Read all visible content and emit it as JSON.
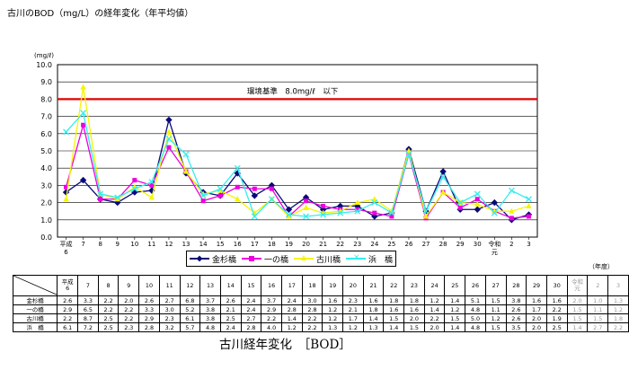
{
  "title": "古川のBOD（mg/L）の経年変化（年平均値）",
  "caption": "古川経年変化　［BOD］",
  "chart_data": {
    "type": "line",
    "ylabel": "(mg/ℓ)",
    "xlabel": "（年度）",
    "ylim": [
      0,
      10
    ],
    "yticks": [
      "0.0",
      "1.0",
      "2.0",
      "3.0",
      "4.0",
      "5.0",
      "6.0",
      "7.0",
      "8.0",
      "9.0",
      "10.0"
    ],
    "categories": [
      "平成6",
      "7",
      "8",
      "9",
      "10",
      "11",
      "12",
      "13",
      "14",
      "15",
      "16",
      "17",
      "18",
      "19",
      "20",
      "21",
      "22",
      "23",
      "24",
      "25",
      "26",
      "27",
      "28",
      "29",
      "30",
      "令和元",
      "2",
      "3"
    ],
    "table_headers": [
      "平成6",
      "7",
      "8",
      "9",
      "10",
      "11",
      "12",
      "13",
      "14",
      "15",
      "16",
      "17",
      "18",
      "19",
      "20",
      "21",
      "22",
      "23",
      "24",
      "25",
      "26",
      "27",
      "28",
      "29",
      "30",
      "令和元",
      "2",
      "3"
    ],
    "grid": true,
    "legend_position": "bottom",
    "reference_line": {
      "value": 8.0,
      "label": "環境基準　8.0mg/ℓ　以下",
      "color": "#e00000"
    },
    "series": [
      {
        "name": "金杉橋",
        "color": "#0a0a7a",
        "marker": "diamond",
        "values": [
          2.6,
          3.3,
          2.2,
          2.0,
          2.6,
          2.7,
          6.8,
          3.7,
          2.6,
          2.4,
          3.7,
          2.4,
          3.0,
          1.6,
          2.3,
          1.6,
          1.8,
          1.8,
          1.2,
          1.4,
          5.1,
          1.5,
          3.8,
          1.6,
          1.6,
          2.0,
          1.0,
          1.3
        ],
        "labels": [
          "2.6",
          "3.3",
          "2.2",
          "2.0",
          "2.6",
          "2.7",
          "6.8",
          "3.7",
          "2.6",
          "2.4",
          "3.7",
          "2.4",
          "3.0",
          "1.6",
          "2.3",
          "1.6",
          "1.8",
          "1.8",
          "1.2",
          "1.4",
          "5.1",
          "1.5",
          "3.8",
          "1.6",
          "1.6",
          "2.0",
          "1.0",
          "1.3"
        ]
      },
      {
        "name": "一の橋",
        "color": "#ee00dd",
        "marker": "square",
        "values": [
          2.9,
          6.5,
          2.2,
          2.2,
          3.3,
          3.0,
          5.2,
          3.8,
          2.1,
          2.4,
          2.9,
          2.8,
          2.8,
          1.2,
          2.1,
          1.8,
          1.6,
          1.6,
          1.4,
          1.2,
          4.8,
          1.1,
          2.6,
          1.7,
          2.2,
          1.5,
          1.1,
          1.2
        ],
        "labels": [
          "2.9",
          "6.5",
          "2.2",
          "2.2",
          "3.3",
          "3.0",
          "5.2",
          "3.8",
          "2.1",
          "2.4",
          "2.9",
          "2.8",
          "2.8",
          "1.2",
          "2.1",
          "1.8",
          "1.6",
          "1.6",
          "1.4",
          "1.2",
          "4.8",
          "1.1",
          "2.6",
          "1.7",
          "2.2",
          "1.5",
          "1.1",
          "1.2"
        ]
      },
      {
        "name": "古川橋",
        "color": "#f5f500",
        "marker": "triangle",
        "values": [
          2.2,
          8.7,
          2.5,
          2.2,
          2.9,
          2.3,
          6.1,
          3.8,
          2.5,
          2.7,
          2.2,
          1.4,
          2.2,
          1.2,
          1.7,
          1.4,
          1.5,
          2.0,
          2.2,
          1.5,
          5.0,
          1.2,
          2.6,
          2.0,
          1.9,
          1.5,
          1.5,
          1.8
        ],
        "labels": [
          "2.2",
          "8.7",
          "2.5",
          "2.2",
          "2.9",
          "2.3",
          "6.1",
          "3.8",
          "2.5",
          "2.7",
          "2.2",
          "1.4",
          "2.2",
          "1.2",
          "1.7",
          "1.4",
          "1.5",
          "2.0",
          "2.2",
          "1.5",
          "5.0",
          "1.2",
          "2.6",
          "2.0",
          "1.9",
          "1.5",
          "1.5",
          "1.8"
        ]
      },
      {
        "name": "浜　橋",
        "color": "#33eeee",
        "marker": "x",
        "values": [
          6.1,
          7.2,
          2.5,
          2.3,
          2.8,
          3.2,
          5.7,
          4.8,
          2.4,
          2.8,
          4.0,
          1.2,
          2.2,
          1.3,
          1.2,
          1.3,
          1.4,
          1.5,
          2.0,
          1.4,
          4.8,
          1.5,
          3.5,
          2.0,
          2.5,
          1.4,
          2.7,
          2.2
        ],
        "labels": [
          "6.1",
          "7.2",
          "2.5",
          "2.3",
          "2.8",
          "3.2",
          "5.7",
          "4.8",
          "2.4",
          "2.8",
          "4.0",
          "1.2",
          "2.2",
          "1.3",
          "1.2",
          "1.3",
          "1.4",
          "1.5",
          "2.0",
          "1.4",
          "4.8",
          "1.5",
          "3.5",
          "2.0",
          "2.5",
          "1.4",
          "2.7",
          "2.2"
        ]
      }
    ]
  }
}
